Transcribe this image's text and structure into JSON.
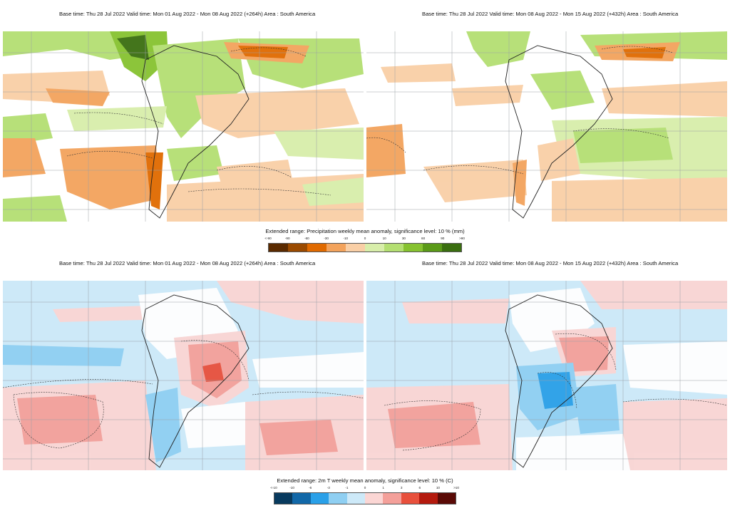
{
  "panels": [
    {
      "id": "precip-week1",
      "title": "Base time: Thu 28 Jul 2022 Valid time: Mon 01 Aug 2022 - Mon 08 Aug 2022 (+264h) Area : South America"
    },
    {
      "id": "precip-week2",
      "title": "Base time: Thu 28 Jul 2022 Valid time: Mon 08 Aug 2022 - Mon 15 Aug 2022 (+432h) Area : South America"
    },
    {
      "id": "temp-week1",
      "title": "Base time: Thu 28 Jul 2022 Valid time: Mon 01 Aug 2022 - Mon 08 Aug 2022 (+264h) Area : South America"
    },
    {
      "id": "temp-week2",
      "title": "Base time: Thu 28 Jul 2022 Valid time: Mon 08 Aug 2022 - Mon 15 Aug 2022 (+432h) Area : South America"
    }
  ],
  "precip_legend": {
    "title": "Extended range: Precipitation weekly mean anomaly, significance level: 10 % (mm)",
    "ticks": [
      "<-90",
      "-90",
      "-60",
      "-30",
      "-10",
      "0",
      "10",
      "30",
      "60",
      "90",
      ">90"
    ],
    "colors": [
      "#5a2a00",
      "#9a4a00",
      "#e06a00",
      "#f3a35c",
      "#f9cfa6",
      "#d8eeaa",
      "#b4df72",
      "#86c230",
      "#5a9a18",
      "#3a6e10"
    ]
  },
  "temp_legend": {
    "title": "Extended range: 2m T weekly mean anomaly, significance level: 10 % (C)",
    "ticks": [
      "<-10",
      "-10",
      "-6",
      "-3",
      "-1",
      "0",
      "1",
      "3",
      "6",
      "10",
      ">10"
    ],
    "colors": [
      "#083a5e",
      "#1268a8",
      "#2aa0e8",
      "#8fcff2",
      "#cde9f8",
      "#fbd6d4",
      "#f4a09a",
      "#e8503c",
      "#b41a0e",
      "#5a0a06"
    ]
  },
  "map_colors": {
    "ocean_white": "#ffffff",
    "grid": "#9aa0a6",
    "coast": "#222222",
    "contour": "#333333"
  }
}
